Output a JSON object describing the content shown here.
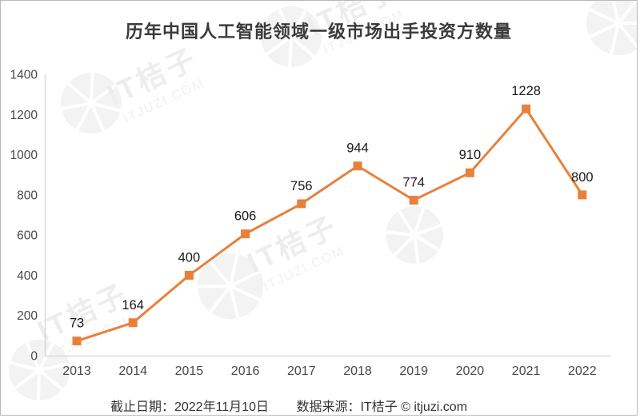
{
  "chart_data": {
    "type": "line",
    "title": "历年中国人工智能领域一级市场出手投资方数量",
    "categories": [
      "2013",
      "2014",
      "2015",
      "2016",
      "2017",
      "2018",
      "2019",
      "2020",
      "2021",
      "2022"
    ],
    "values": [
      73,
      164,
      400,
      606,
      756,
      944,
      774,
      910,
      1228,
      800
    ],
    "yticks": [
      0,
      200,
      400,
      600,
      800,
      1000,
      1200,
      1400
    ],
    "ylim": [
      0,
      1400
    ],
    "xlabel": "",
    "ylabel": "",
    "grid": false,
    "legend": "none",
    "data_labels": true,
    "marker": "square",
    "line_color": "#E8803C"
  },
  "footer": {
    "cutoff": "截止日期：2022年11月10日",
    "source": "数据来源：IT桔子 © itjuzi.com"
  },
  "watermark": {
    "brand": "IT桔子",
    "domain": "ITJUZI.COM"
  },
  "colors": {
    "accent": "#E8803C",
    "axis_line": "#d9d9d9",
    "tick_text": "#484848",
    "label_text": "#1a1a1a"
  }
}
